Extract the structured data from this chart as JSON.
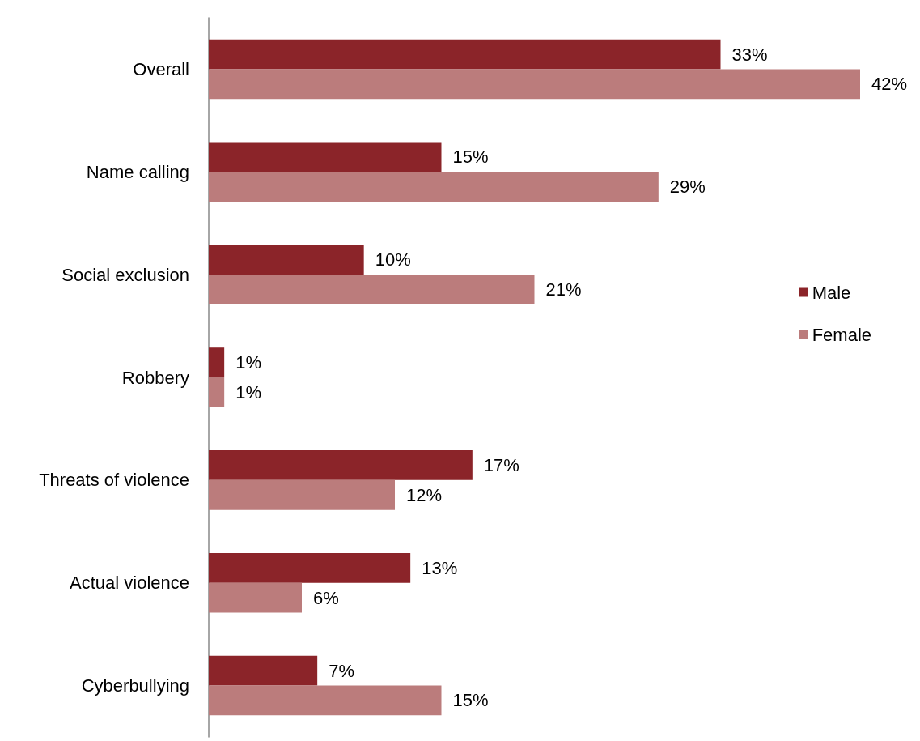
{
  "chart_data": {
    "type": "bar",
    "orientation": "horizontal",
    "categories": [
      "Overall",
      "Name calling",
      "Social exclusion",
      "Robbery",
      "Threats of violence",
      "Actual violence",
      "Cyberbullying"
    ],
    "series": [
      {
        "name": "Male",
        "color": "#8b2429",
        "values": [
          33,
          15,
          10,
          1,
          17,
          13,
          7
        ],
        "value_labels": [
          "33%",
          "15%",
          "10%",
          "1%",
          "17%",
          "13%",
          "7%"
        ]
      },
      {
        "name": "Female",
        "color": "#bb7c7c",
        "values": [
          42,
          29,
          21,
          1,
          12,
          6,
          15
        ],
        "value_labels": [
          "42%",
          "29%",
          "21%",
          "1%",
          "12%",
          "6%",
          "15%"
        ]
      }
    ],
    "legend": "right",
    "grid": false
  }
}
